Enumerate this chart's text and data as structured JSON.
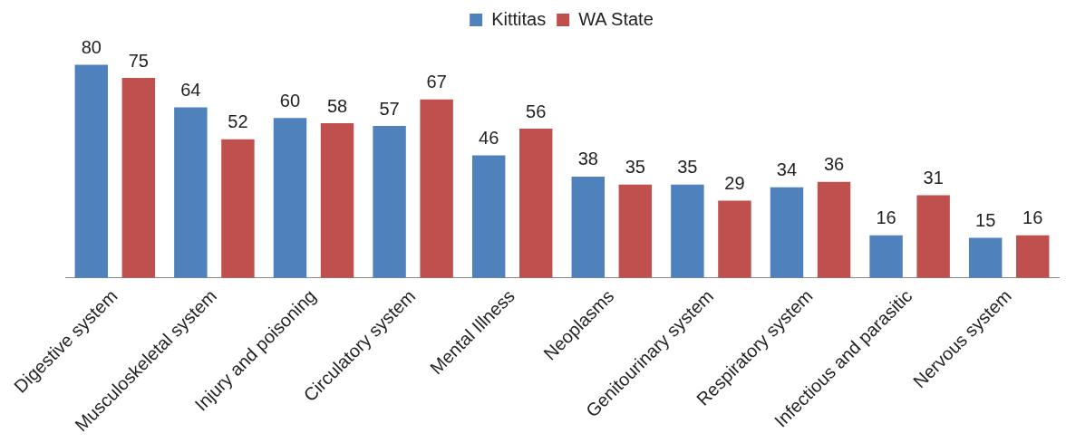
{
  "chart_data": {
    "type": "bar",
    "categories": [
      "Digestive system",
      "Musculoskeletal system",
      "Injury and poisoning",
      "Circulatory system",
      "Mental Illness",
      "Neoplasms",
      "Genitourinary system",
      "Respiratory system",
      "Infectious and parasitic",
      "Nervous system"
    ],
    "series": [
      {
        "name": "Kittitas",
        "color": "#4f81bd",
        "values": [
          80,
          64,
          60,
          57,
          46,
          38,
          35,
          34,
          16,
          15
        ]
      },
      {
        "name": "WA State",
        "color": "#c0504d",
        "values": [
          75,
          52,
          58,
          67,
          56,
          35,
          29,
          36,
          31,
          16
        ]
      }
    ],
    "data_labels": true,
    "legend": "top"
  }
}
